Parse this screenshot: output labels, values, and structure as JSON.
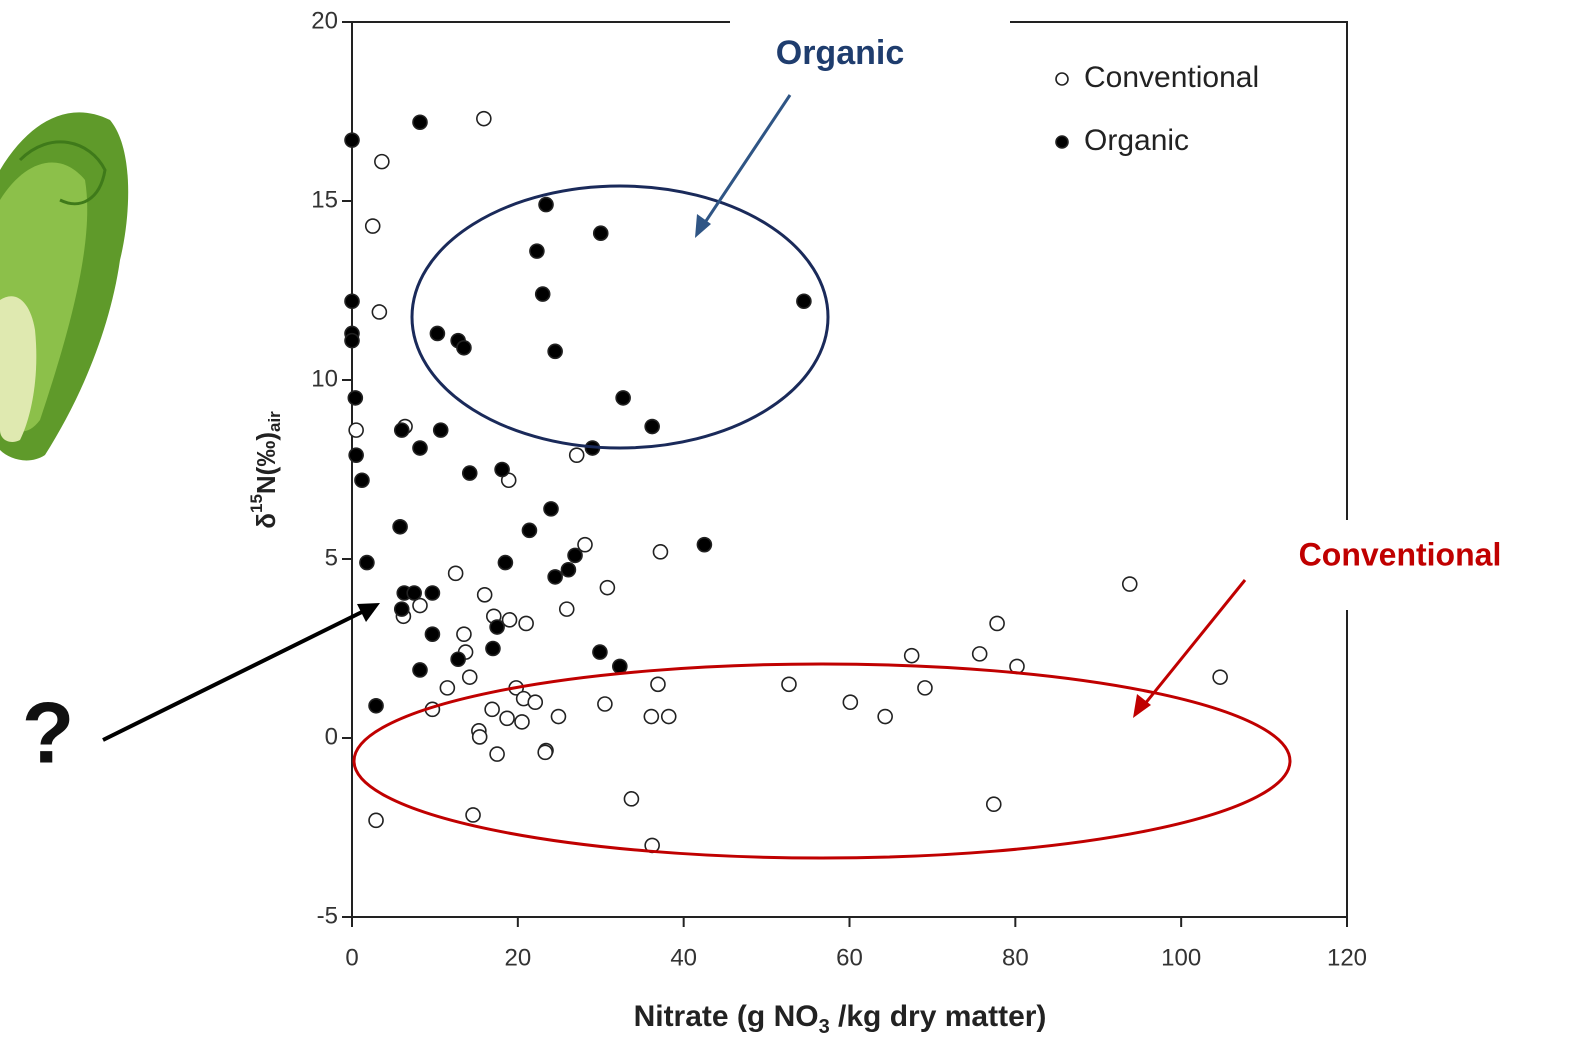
{
  "chart_data": {
    "type": "scatter",
    "ylabel": {
      "symbol": "δ",
      "sup": "15",
      "main": "N(‰)",
      "sub": "air"
    },
    "xlabel": {
      "main": "Nitrate (g NO",
      "sub": "3",
      "rest": " /kg dry matter)"
    },
    "xlim": [
      0,
      120
    ],
    "xticks": [
      0,
      20,
      40,
      60,
      80,
      100,
      120
    ],
    "ylim": [
      -5,
      20
    ],
    "yticks": [
      -5,
      0,
      5,
      10,
      15,
      20
    ],
    "legend": "upper right",
    "series": [
      {
        "name": "Conventional",
        "color": "#ffffff",
        "x": [
          15.9,
          3.6,
          2.5,
          3.3,
          6.4,
          0.5,
          27.1,
          18.9,
          28.1,
          37.2,
          12.5,
          30.8,
          16.0,
          8.2,
          6.2,
          25.9,
          17.1,
          19.0,
          21.0,
          13.5,
          13.7,
          14.2,
          11.5,
          19.8,
          20.7,
          22.1,
          36.9,
          9.7,
          16.9,
          18.7,
          20.5,
          24.9,
          30.5,
          36.1,
          38.2,
          15.3,
          15.4,
          17.5,
          23.4,
          23.3,
          2.9,
          14.6,
          33.7,
          36.2,
          52.7,
          60.1,
          64.3,
          67.5,
          69.1,
          75.7,
          77.8,
          80.2,
          77.4,
          93.8,
          104.7
        ],
        "values": [
          17.3,
          16.1,
          14.3,
          11.9,
          8.7,
          8.6,
          7.9,
          7.2,
          5.4,
          5.2,
          4.6,
          4.2,
          4.0,
          3.7,
          3.4,
          3.6,
          3.4,
          3.3,
          3.2,
          2.9,
          2.4,
          1.7,
          1.4,
          1.4,
          1.1,
          1.0,
          1.5,
          0.8,
          0.8,
          0.55,
          0.45,
          0.6,
          0.95,
          0.6,
          0.6,
          0.2,
          0.03,
          -0.45,
          -0.35,
          -0.4,
          -2.3,
          -2.15,
          -1.7,
          -3.0,
          1.5,
          1.0,
          0.6,
          2.3,
          1.4,
          2.35,
          3.2,
          2.0,
          -1.85,
          4.3,
          1.7
        ]
      },
      {
        "name": "Organic",
        "color": "#000000",
        "x": [
          0,
          8.2,
          23.4,
          30.0,
          22.3,
          23.0,
          54.5,
          0,
          10.3,
          12.8,
          13.5,
          0,
          0,
          24.5,
          32.7,
          36.2,
          0.4,
          6.0,
          10.7,
          8.2,
          29.0,
          0.5,
          1.2,
          14.2,
          18.1,
          24.0,
          21.4,
          42.5,
          5.8,
          18.5,
          26.9,
          26.1,
          24.5,
          1.8,
          6.3,
          7.5,
          9.7,
          6.0,
          17.5,
          9.7,
          17.0,
          12.8,
          29.9,
          32.3,
          8.2,
          2.9
        ],
        "values": [
          16.7,
          17.2,
          14.9,
          14.1,
          13.6,
          12.4,
          12.2,
          12.2,
          11.3,
          11.1,
          10.9,
          11.3,
          11.1,
          10.8,
          9.5,
          8.7,
          9.5,
          8.6,
          8.6,
          8.1,
          8.1,
          7.9,
          7.2,
          7.4,
          7.5,
          6.4,
          5.8,
          5.4,
          5.9,
          4.9,
          5.1,
          4.7,
          4.5,
          4.9,
          4.05,
          4.05,
          4.05,
          3.6,
          3.1,
          2.9,
          2.5,
          2.2,
          2.4,
          2.0,
          1.9,
          0.9
        ]
      }
    ],
    "annotations": [
      "Organic",
      "Conventional",
      "?"
    ]
  }
}
